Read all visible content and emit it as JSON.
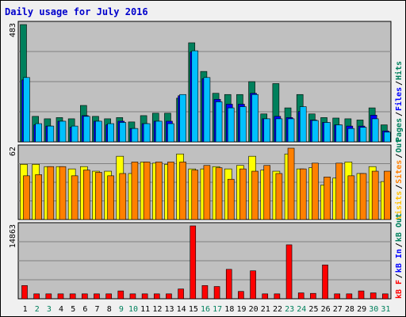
{
  "title": "Daily usage for July 2016",
  "colors": {
    "panel_bg": "#c0c0c0",
    "pages": "#00805c",
    "files": "#0000ff",
    "hits": "#00c0ff",
    "visits": "#ffff00",
    "sites": "#ff8000",
    "kbf": "#ff0000",
    "weekend": "#00805c",
    "weekday": "#000000",
    "legend_pages": "#00805c",
    "legend_files": "#0000ff",
    "legend_hits": "#00805c",
    "legend_visits": "#ffc000",
    "legend_sites": "#ff8000",
    "legend_kbf": "#ff0000",
    "legend_kbin": "#0000ff",
    "legend_kbout": "#00805c"
  },
  "chart_data": [
    {
      "type": "bar",
      "panel": "hits",
      "ymax_label": "483",
      "ylim": [
        0,
        483
      ],
      "legend": [
        "Pages",
        "Files",
        "Hits"
      ],
      "categories": [
        "1",
        "2",
        "3",
        "4",
        "5",
        "6",
        "7",
        "8",
        "9",
        "10",
        "11",
        "12",
        "13",
        "14",
        "15",
        "16",
        "17",
        "18",
        "19",
        "20",
        "21",
        "22",
        "23",
        "24",
        "25",
        "26",
        "27",
        "28",
        "29",
        "30",
        "31"
      ],
      "series": [
        {
          "name": "Pages",
          "values": [
            483,
            105,
            95,
            100,
            95,
            150,
            105,
            95,
            100,
            82,
            108,
            118,
            118,
            180,
            408,
            290,
            200,
            195,
            195,
            248,
            115,
            240,
            140,
            195,
            115,
            100,
            98,
            95,
            90,
            140,
            70
          ]
        },
        {
          "name": "Files",
          "values": [
            255,
            70,
            65,
            85,
            60,
            108,
            85,
            70,
            85,
            55,
            75,
            85,
            85,
            190,
            370,
            260,
            175,
            155,
            155,
            200,
            95,
            105,
            100,
            125,
            90,
            80,
            70,
            65,
            65,
            110,
            45
          ]
        },
        {
          "name": "Hits",
          "values": [
            265,
            75,
            65,
            85,
            65,
            105,
            85,
            75,
            80,
            55,
            75,
            85,
            75,
            195,
            375,
            265,
            165,
            140,
            145,
            195,
            95,
            95,
            95,
            145,
            88,
            80,
            70,
            55,
            60,
            95,
            40
          ]
        }
      ]
    },
    {
      "type": "bar",
      "panel": "visits",
      "ymax_label": "62",
      "ylim": [
        0,
        62
      ],
      "legend": [
        "Visits",
        "Sites",
        "Out"
      ],
      "categories": [
        "1",
        "2",
        "3",
        "4",
        "5",
        "6",
        "7",
        "8",
        "9",
        "10",
        "11",
        "12",
        "13",
        "14",
        "15",
        "16",
        "17",
        "18",
        "19",
        "20",
        "21",
        "22",
        "23",
        "24",
        "25",
        "26",
        "27",
        "28",
        "29",
        "30",
        "31"
      ],
      "series": [
        {
          "name": "Visits",
          "values": [
            48,
            48,
            46,
            46,
            44,
            46,
            42,
            42,
            55,
            40,
            50,
            49,
            48,
            57,
            44,
            44,
            46,
            44,
            47,
            55,
            43,
            42,
            57,
            44,
            45,
            30,
            36,
            50,
            40,
            46,
            33
          ]
        },
        {
          "name": "Sites",
          "values": [
            38,
            39,
            46,
            46,
            38,
            43,
            41,
            38,
            40,
            50,
            50,
            50,
            50,
            50,
            43,
            47,
            45,
            35,
            44,
            42,
            47,
            40,
            62,
            44,
            49,
            37,
            49,
            38,
            40,
            42,
            42
          ]
        }
      ]
    },
    {
      "type": "bar",
      "panel": "kbytes",
      "ymax_label": "14863",
      "ylim": [
        0,
        14863
      ],
      "legend": [
        "kB F",
        "kB In",
        "kB Out"
      ],
      "categories": [
        "1",
        "2",
        "3",
        "4",
        "5",
        "6",
        "7",
        "8",
        "9",
        "10",
        "11",
        "12",
        "13",
        "14",
        "15",
        "16",
        "17",
        "18",
        "19",
        "20",
        "21",
        "22",
        "23",
        "24",
        "25",
        "26",
        "27",
        "28",
        "29",
        "30",
        "31"
      ],
      "series": [
        {
          "name": "kB F",
          "values": [
            2700,
            1000,
            1000,
            1000,
            1000,
            1000,
            1000,
            1000,
            1600,
            1000,
            1000,
            1000,
            1000,
            2000,
            14863,
            2700,
            2500,
            6000,
            1500,
            5700,
            1000,
            1000,
            11000,
            1200,
            1100,
            6900,
            1000,
            1000,
            1600,
            1200,
            1000
          ]
        }
      ]
    }
  ],
  "days": [
    "1",
    "2",
    "3",
    "4",
    "5",
    "6",
    "7",
    "8",
    "9",
    "10",
    "11",
    "12",
    "13",
    "14",
    "15",
    "16",
    "17",
    "18",
    "19",
    "20",
    "21",
    "22",
    "23",
    "24",
    "25",
    "26",
    "27",
    "28",
    "29",
    "30",
    "31"
  ],
  "weekend_days": [
    "2",
    "3",
    "9",
    "10",
    "16",
    "17",
    "23",
    "24",
    "30",
    "31"
  ]
}
